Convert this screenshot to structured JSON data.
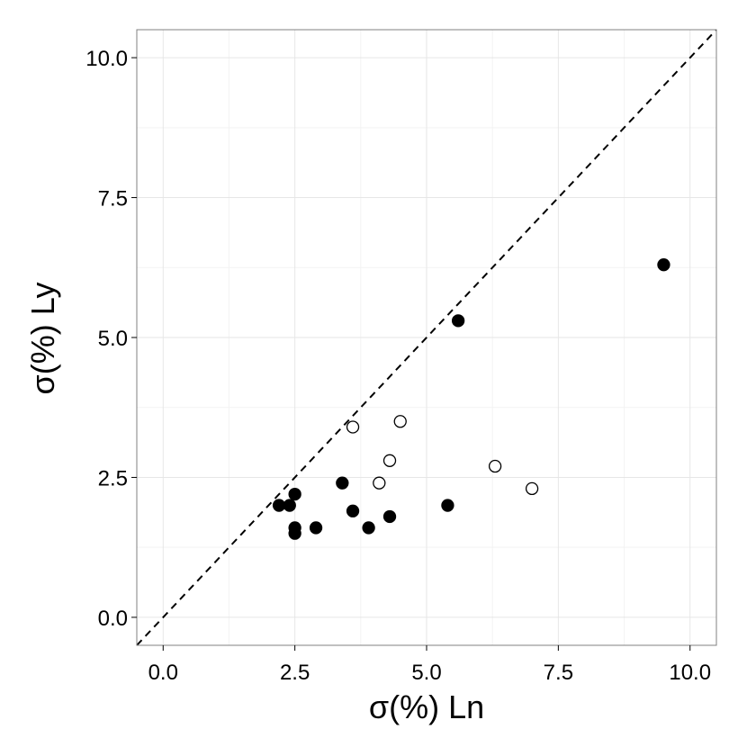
{
  "chart_data": {
    "type": "scatter",
    "xlabel": "σ(%)  Ln",
    "ylabel": "σ(%)  Ly",
    "xlim": [
      -0.5,
      10.5
    ],
    "ylim": [
      -0.5,
      10.5
    ],
    "x_ticks": [
      0.0,
      2.5,
      5.0,
      7.5,
      10.0
    ],
    "y_ticks": [
      0.0,
      2.5,
      5.0,
      7.5,
      10.0
    ],
    "x_tick_labels": [
      "0.0",
      "2.5",
      "5.0",
      "7.5",
      "10.0"
    ],
    "y_tick_labels": [
      "0.0",
      "2.5",
      "5.0",
      "7.5",
      "10.0"
    ],
    "grid": true,
    "reference_line": {
      "style": "dashed",
      "slope": 1,
      "intercept": 0,
      "color": "#000000"
    },
    "series": [
      {
        "marker": "filled",
        "color": "#000000",
        "points": [
          [
            2.2,
            2.0
          ],
          [
            2.4,
            2.0
          ],
          [
            2.5,
            2.2
          ],
          [
            2.5,
            1.6
          ],
          [
            2.5,
            1.5
          ],
          [
            2.9,
            1.6
          ],
          [
            3.4,
            2.4
          ],
          [
            3.6,
            1.9
          ],
          [
            3.9,
            1.6
          ],
          [
            4.3,
            1.8
          ],
          [
            5.4,
            2.0
          ],
          [
            5.6,
            5.3
          ],
          [
            9.5,
            6.3
          ]
        ]
      },
      {
        "marker": "open",
        "color": "#000000",
        "points": [
          [
            3.6,
            3.4
          ],
          [
            4.5,
            3.5
          ],
          [
            4.3,
            2.8
          ],
          [
            4.1,
            2.4
          ],
          [
            6.3,
            2.7
          ],
          [
            7.0,
            2.3
          ]
        ]
      }
    ]
  },
  "colors": {
    "background": "#ffffff",
    "panel_border": "#808080",
    "grid_major": "#e6e6e6",
    "grid_minor": "#f3f3f3",
    "points": "#000000"
  }
}
